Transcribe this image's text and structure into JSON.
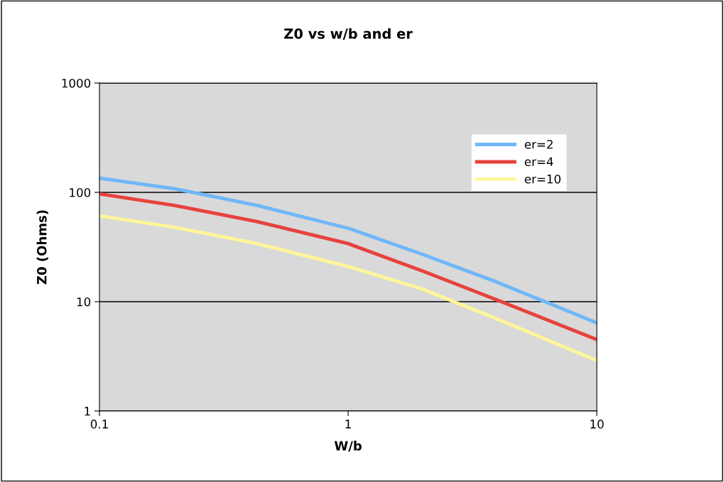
{
  "chart_data": {
    "type": "line",
    "title": "Z0 vs w/b and er",
    "xlabel": "W/b",
    "ylabel": "Z0 (Ohms)",
    "x": [
      0.1,
      0.2,
      0.43,
      1,
      2,
      4,
      10
    ],
    "series": [
      {
        "name": "er=2",
        "color": "#6fb7f8",
        "values": [
          135,
          108,
          76,
          47,
          27,
          15,
          6.4
        ]
      },
      {
        "name": "er=4",
        "color": "#e8423d",
        "values": [
          97,
          76,
          54,
          34,
          19,
          10.3,
          4.5
        ]
      },
      {
        "name": "er=10",
        "color": "#fff59a",
        "values": [
          61,
          48,
          34,
          21,
          13,
          6.9,
          2.9
        ]
      }
    ],
    "log": "xy",
    "xlim": [
      0.1,
      10
    ],
    "ylim": [
      1,
      1000
    ],
    "xticks": [
      0.1,
      1,
      10
    ],
    "yticks": [
      1,
      10,
      100,
      1000
    ],
    "grid": "y",
    "legend": "top right",
    "marker": "none",
    "line_style": "solid"
  }
}
